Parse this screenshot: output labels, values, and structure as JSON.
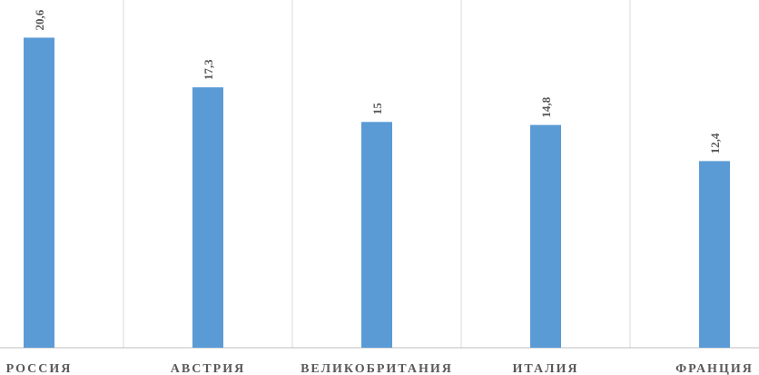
{
  "chart_data": {
    "type": "bar",
    "title": "",
    "xlabel": "",
    "ylabel": "",
    "categories": [
      "РОССИЯ",
      "АВСТРИЯ",
      "ВЕЛИКОБРИТАНИЯ",
      "ИТАЛИЯ",
      "ФРАНЦИЯ"
    ],
    "values": [
      20.6,
      17.3,
      15,
      14.8,
      12.4
    ],
    "data_labels": [
      "20,6",
      "17,3",
      "15",
      "14,8",
      "12,4"
    ],
    "ylim": [
      0,
      22
    ],
    "grid": "vertical separators between categories",
    "legend": "none",
    "colors": {
      "bar": "#5b9bd5",
      "grid": "#d9d9d9",
      "axis": "#bfbfbf",
      "text": "#595959"
    }
  }
}
